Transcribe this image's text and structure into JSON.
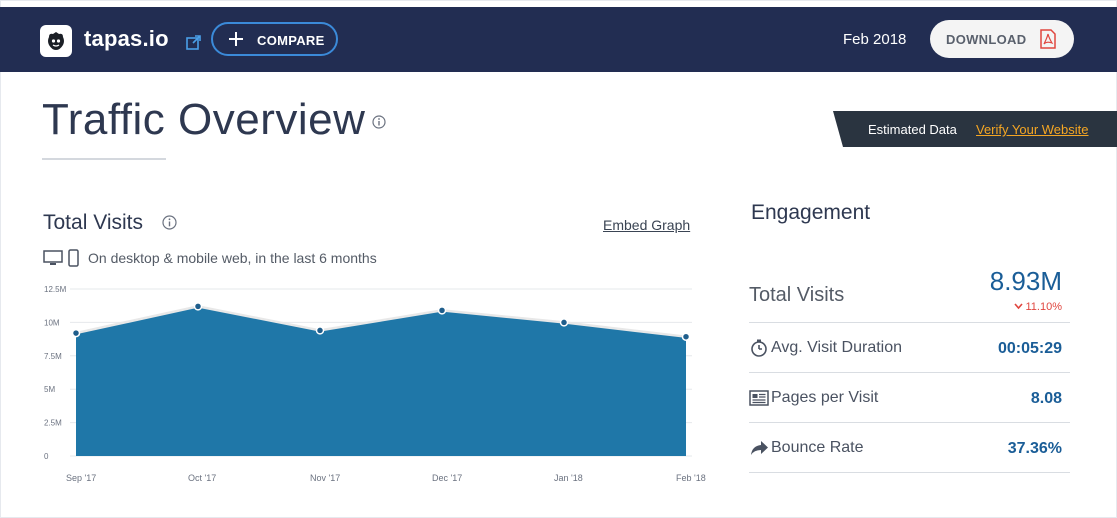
{
  "topbar": {
    "site_name": "tapas.io",
    "compare_label": "COMPARE",
    "date": "Feb 2018",
    "download_label": "DOWNLOAD",
    "icons": [
      "tapas-logo-icon",
      "external-link-icon",
      "plus-icon",
      "pdf-icon"
    ]
  },
  "page": {
    "title": "Traffic Overview"
  },
  "banner": {
    "estimated_text": "Estimated Data",
    "verify_link": "Verify Your Website"
  },
  "visits": {
    "heading": "Total Visits",
    "embed_link": "Embed Graph",
    "subtitle": "On desktop & mobile web, in the last 6 months"
  },
  "chart_data": {
    "type": "area",
    "x": [
      "Sep '17",
      "Oct '17",
      "Nov '17",
      "Dec '17",
      "Jan '18",
      "Feb '18"
    ],
    "series": [
      {
        "values": [
          9.2,
          11.2,
          9.4,
          10.9,
          10.0,
          8.93
        ]
      }
    ],
    "y_unit": "M",
    "y_ticks": [
      "0",
      "2.5M",
      "5M",
      "7.5M",
      "10M",
      "12.5M"
    ],
    "ylim": [
      0,
      12.5
    ],
    "grid": true,
    "colors": {
      "fill": "#1f77a8",
      "line": "#e8e8e8",
      "point": "#ffffff",
      "point_stroke": "#1f5e8c"
    }
  },
  "engagement": {
    "heading": "Engagement",
    "total_visits": {
      "label": "Total Visits",
      "value": "8.93M",
      "change": "11.10%",
      "change_direction": "down"
    },
    "avg_duration": {
      "label": "Avg. Visit Duration",
      "value": "00:05:29",
      "icon": "stopwatch-icon"
    },
    "pages_per_visit": {
      "label": "Pages per Visit",
      "value": "8.08",
      "icon": "pages-icon"
    },
    "bounce_rate": {
      "label": "Bounce Rate",
      "value": "37.36%",
      "icon": "bounce-arrow-icon"
    }
  },
  "colors": {
    "topbar_bg": "#222d52",
    "accent_blue": "#3b8ad9",
    "value_blue": "#1a5d97",
    "negative_red": "#e0463f",
    "verify_orange": "#f5a623"
  }
}
